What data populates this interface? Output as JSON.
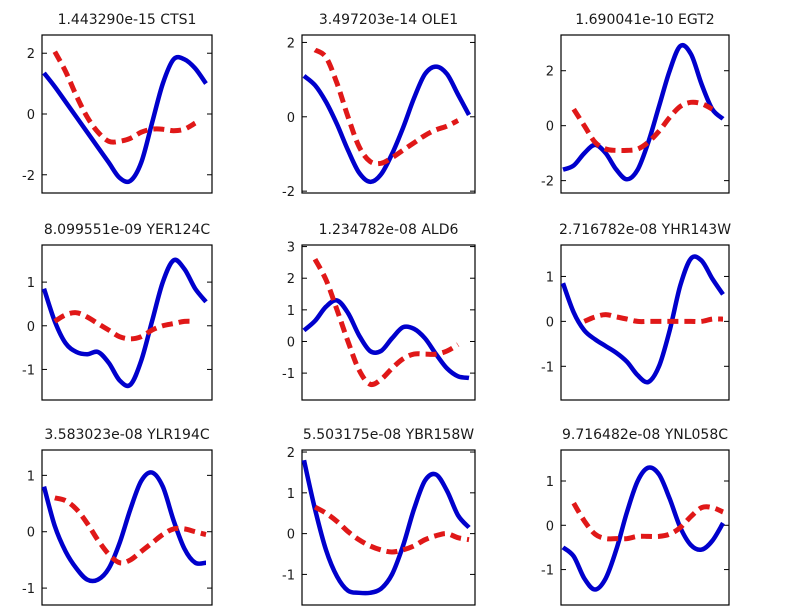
{
  "colors": {
    "series_blue": "#0000cc",
    "series_red": "#e01818",
    "axes": "#000000"
  },
  "chart_data": [
    {
      "type": "line",
      "title": "1.443290e-15 CTS1",
      "ylim": [
        -2.6,
        2.6
      ],
      "yticks": [
        -2,
        0,
        2
      ],
      "grid": false,
      "series": [
        {
          "color": "#0000cc",
          "style": "solid",
          "values": [
            1.35,
            0.9,
            0.4,
            -0.1,
            -0.6,
            -1.1,
            -1.6,
            -2.1,
            -2.2,
            -1.6,
            -0.3,
            1.0,
            1.8,
            1.8,
            1.5,
            1.0
          ]
        },
        {
          "color": "#e01818",
          "style": "dashed",
          "values": [
            null,
            2.05,
            1.4,
            0.6,
            -0.1,
            -0.6,
            -0.9,
            -0.9,
            -0.8,
            -0.6,
            -0.5,
            -0.5,
            -0.55,
            -0.5,
            -0.3,
            null
          ]
        }
      ]
    },
    {
      "type": "line",
      "title": "3.497203e-14 OLE1",
      "ylim": [
        -2.05,
        2.2
      ],
      "yticks": [
        -2,
        0,
        2
      ],
      "grid": false,
      "series": [
        {
          "color": "#0000cc",
          "style": "solid",
          "values": [
            1.1,
            0.85,
            0.4,
            -0.2,
            -0.9,
            -1.5,
            -1.75,
            -1.55,
            -1.0,
            -0.3,
            0.5,
            1.15,
            1.35,
            1.15,
            0.6,
            0.05
          ]
        },
        {
          "color": "#e01818",
          "style": "dashed",
          "values": [
            null,
            1.8,
            1.6,
            0.9,
            0.0,
            -0.8,
            -1.2,
            -1.25,
            -1.1,
            -0.9,
            -0.7,
            -0.5,
            -0.35,
            -0.25,
            -0.1,
            null
          ]
        }
      ]
    },
    {
      "type": "line",
      "title": "1.690041e-10 EGT2",
      "ylim": [
        -2.45,
        3.3
      ],
      "yticks": [
        -2,
        0,
        2
      ],
      "grid": false,
      "series": [
        {
          "color": "#0000cc",
          "style": "solid",
          "values": [
            -1.6,
            -1.45,
            -1.0,
            -0.7,
            -1.0,
            -1.6,
            -1.95,
            -1.6,
            -0.6,
            0.7,
            2.0,
            2.9,
            2.6,
            1.5,
            0.6,
            0.25
          ]
        },
        {
          "color": "#e01818",
          "style": "dashed",
          "values": [
            null,
            0.6,
            0.0,
            -0.6,
            -0.85,
            -0.9,
            -0.9,
            -0.85,
            -0.6,
            -0.2,
            0.3,
            0.7,
            0.85,
            0.8,
            0.6,
            null
          ]
        }
      ]
    },
    {
      "type": "line",
      "title": "8.099551e-09 YER124C",
      "ylim": [
        -1.7,
        1.85
      ],
      "yticks": [
        -1,
        0,
        1
      ],
      "grid": false,
      "series": [
        {
          "color": "#0000cc",
          "style": "solid",
          "values": [
            0.85,
            0.1,
            -0.4,
            -0.6,
            -0.65,
            -0.6,
            -0.85,
            -1.25,
            -1.35,
            -0.8,
            0.1,
            1.0,
            1.5,
            1.3,
            0.85,
            0.55
          ]
        },
        {
          "color": "#e01818",
          "style": "dashed",
          "values": [
            null,
            0.1,
            0.25,
            0.3,
            0.2,
            0.05,
            -0.1,
            -0.25,
            -0.3,
            -0.25,
            -0.1,
            0.0,
            0.05,
            0.1,
            0.1,
            null
          ]
        }
      ]
    },
    {
      "type": "line",
      "title": "1.234782e-08 ALD6",
      "ylim": [
        -1.85,
        3.05
      ],
      "yticks": [
        -1,
        0,
        1,
        2,
        3
      ],
      "grid": false,
      "series": [
        {
          "color": "#0000cc",
          "style": "solid",
          "values": [
            0.35,
            0.65,
            1.1,
            1.3,
            0.9,
            0.2,
            -0.3,
            -0.3,
            0.1,
            0.45,
            0.4,
            0.1,
            -0.4,
            -0.85,
            -1.1,
            -1.15
          ]
        },
        {
          "color": "#e01818",
          "style": "dashed",
          "values": [
            null,
            2.6,
            1.95,
            1.0,
            0.0,
            -0.9,
            -1.35,
            -1.2,
            -0.85,
            -0.55,
            -0.4,
            -0.4,
            -0.4,
            -0.3,
            -0.1,
            null
          ]
        }
      ]
    },
    {
      "type": "line",
      "title": "2.716782e-08 YHR143W",
      "ylim": [
        -1.75,
        1.7
      ],
      "yticks": [
        -1,
        0,
        1
      ],
      "grid": false,
      "series": [
        {
          "color": "#0000cc",
          "style": "solid",
          "values": [
            0.85,
            0.2,
            -0.2,
            -0.4,
            -0.55,
            -0.7,
            -0.9,
            -1.2,
            -1.35,
            -1.0,
            -0.2,
            0.8,
            1.4,
            1.35,
            0.95,
            0.6
          ]
        },
        {
          "color": "#e01818",
          "style": "dashed",
          "values": [
            null,
            null,
            0.0,
            0.1,
            0.15,
            0.1,
            0.05,
            0.0,
            0.0,
            0.0,
            0.0,
            0.0,
            0.0,
            0.0,
            0.05,
            0.05
          ]
        }
      ]
    },
    {
      "type": "line",
      "title": "3.583023e-08 YLR194C",
      "ylim": [
        -1.3,
        1.45
      ],
      "yticks": [
        -1,
        0,
        1
      ],
      "grid": false,
      "series": [
        {
          "color": "#0000cc",
          "style": "solid",
          "values": [
            0.8,
            0.1,
            -0.35,
            -0.65,
            -0.85,
            -0.85,
            -0.65,
            -0.2,
            0.4,
            0.9,
            1.05,
            0.8,
            0.2,
            -0.3,
            -0.55,
            -0.55
          ]
        },
        {
          "color": "#e01818",
          "style": "dashed",
          "values": [
            null,
            0.6,
            0.55,
            0.4,
            0.15,
            -0.15,
            -0.4,
            -0.55,
            -0.5,
            -0.35,
            -0.2,
            -0.05,
            0.05,
            0.05,
            0.0,
            -0.05
          ]
        }
      ]
    },
    {
      "type": "line",
      "title": "5.503175e-08 YBR158W",
      "ylim": [
        -1.75,
        2.05
      ],
      "yticks": [
        -1,
        0,
        1,
        2
      ],
      "grid": false,
      "series": [
        {
          "color": "#0000cc",
          "style": "solid",
          "values": [
            1.8,
            0.6,
            -0.4,
            -1.05,
            -1.4,
            -1.45,
            -1.45,
            -1.35,
            -1.0,
            -0.3,
            0.6,
            1.3,
            1.45,
            1.05,
            0.45,
            0.15
          ]
        },
        {
          "color": "#e01818",
          "style": "dashed",
          "values": [
            null,
            0.65,
            0.5,
            0.3,
            0.05,
            -0.15,
            -0.3,
            -0.4,
            -0.45,
            -0.4,
            -0.3,
            -0.15,
            -0.05,
            0.0,
            -0.1,
            -0.15
          ]
        }
      ]
    },
    {
      "type": "line",
      "title": "9.716482e-08 YNL058C",
      "ylim": [
        -1.8,
        1.7
      ],
      "yticks": [
        -1,
        0,
        1
      ],
      "grid": false,
      "series": [
        {
          "color": "#0000cc",
          "style": "solid",
          "values": [
            -0.5,
            -0.7,
            -1.2,
            -1.45,
            -1.2,
            -0.55,
            0.3,
            1.0,
            1.3,
            1.15,
            0.6,
            -0.05,
            -0.45,
            -0.55,
            -0.35,
            0.05
          ]
        },
        {
          "color": "#e01818",
          "style": "dashed",
          "values": [
            null,
            0.5,
            0.1,
            -0.2,
            -0.3,
            -0.3,
            -0.3,
            -0.25,
            -0.25,
            -0.25,
            -0.2,
            -0.05,
            0.2,
            0.4,
            0.4,
            0.3
          ]
        }
      ]
    }
  ]
}
